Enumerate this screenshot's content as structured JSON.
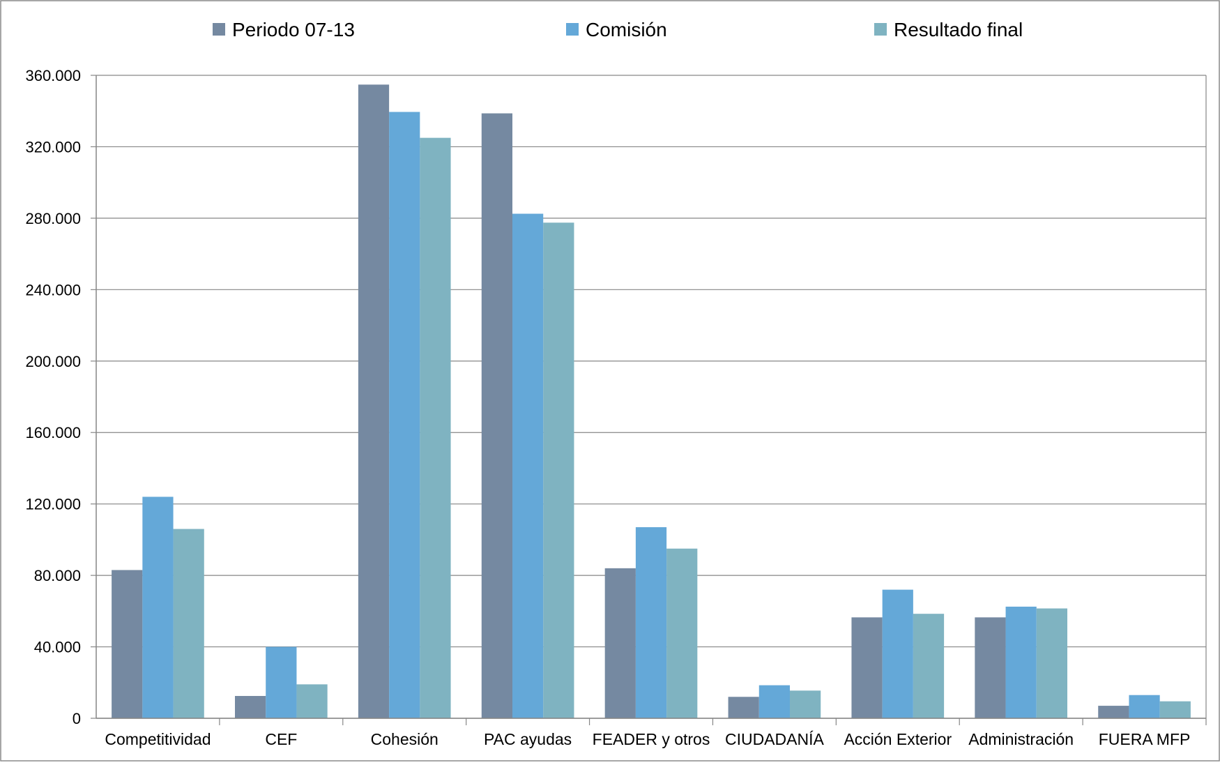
{
  "chart_data": {
    "type": "bar",
    "title": "",
    "xlabel": "",
    "ylabel": "",
    "ylim": [
      0,
      360000
    ],
    "y_ticks": [
      0,
      40000,
      80000,
      120000,
      160000,
      200000,
      240000,
      280000,
      320000,
      360000
    ],
    "y_tick_labels": [
      "0",
      "40.000",
      "80.000",
      "120.000",
      "160.000",
      "200.000",
      "240.000",
      "280.000",
      "320.000",
      "360.000"
    ],
    "grid": true,
    "legend_position": "top",
    "categories": [
      "Competitividad",
      "CEF",
      "Cohesión",
      "PAC ayudas",
      "FEADER y otros",
      "CIUDADANÍA",
      "Acción Exterior",
      "Administración",
      "FUERA MFP"
    ],
    "series": [
      {
        "name": "Periodo 07-13",
        "color": "#7589a1",
        "values": [
          83000,
          12500,
          354800,
          338700,
          84000,
          12000,
          56500,
          56500,
          7000
        ]
      },
      {
        "name": "Comisión",
        "color": "#64a8d8",
        "values": [
          124000,
          40000,
          339500,
          282500,
          107000,
          18500,
          72000,
          62500,
          13000
        ]
      },
      {
        "name": "Resultado final",
        "color": "#7fb3c1",
        "values": [
          106000,
          19000,
          325000,
          277500,
          95000,
          15500,
          58500,
          61500,
          9500
        ]
      }
    ]
  }
}
